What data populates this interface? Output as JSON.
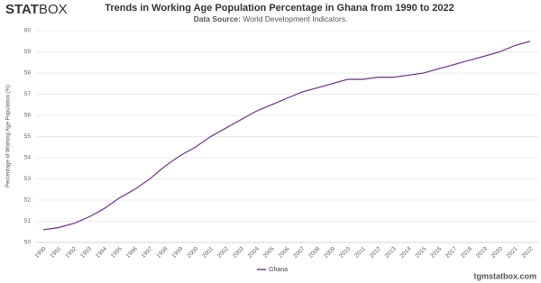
{
  "brand": {
    "bold": "STAT",
    "light": "BOX"
  },
  "footer": "tgmstatbox.com",
  "chart_data": {
    "type": "line",
    "title": "Trends in Working Age Population Percentage in Ghana from 1990 to 2022",
    "subtitle_label": "Data Source:",
    "subtitle": "World Development Indicators.",
    "y_label": "Percentage of Working Age Population (%)",
    "categories": [
      "1990",
      "1991",
      "1992",
      "1993",
      "1994",
      "1995",
      "1996",
      "1997",
      "1998",
      "1999",
      "2000",
      "2001",
      "2002",
      "2003",
      "2004",
      "2005",
      "2006",
      "2007",
      "2008",
      "2009",
      "2010",
      "2011",
      "2012",
      "2013",
      "2014",
      "2015",
      "2016",
      "2017",
      "2018",
      "2019",
      "2020",
      "2021",
      "2022"
    ],
    "series": [
      {
        "name": "Ghana",
        "color": "#7b3f8f",
        "values": [
          50.6,
          50.7,
          50.9,
          51.2,
          51.6,
          52.1,
          52.5,
          53.0,
          53.6,
          54.1,
          54.5,
          55.0,
          55.4,
          55.8,
          56.2,
          56.5,
          56.8,
          57.1,
          57.3,
          57.5,
          57.7,
          57.7,
          57.8,
          57.8,
          57.9,
          58.0,
          58.2,
          58.4,
          58.6,
          58.8,
          59.0,
          59.3,
          59.5
        ]
      }
    ],
    "ylim": [
      50,
      60
    ],
    "yticks": [
      50,
      51,
      52,
      53,
      54,
      55,
      56,
      57,
      58,
      59,
      60
    ],
    "grid": true
  }
}
